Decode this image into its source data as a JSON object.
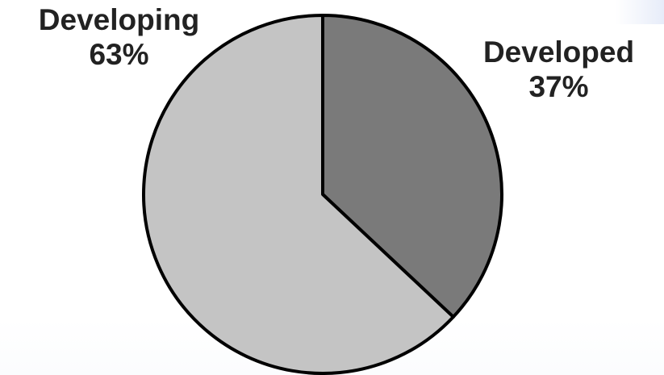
{
  "chart_data": {
    "type": "pie",
    "title": "",
    "slices": [
      {
        "name": "Developed",
        "value": 37,
        "value_label": "37%",
        "color": "#7a7a7a"
      },
      {
        "name": "Developing",
        "value": 63,
        "value_label": "63%",
        "color": "#c4c4c4"
      }
    ],
    "start_angle_deg": 0,
    "direction": "clockwise",
    "outline_color": "#000000",
    "legend": "none"
  }
}
